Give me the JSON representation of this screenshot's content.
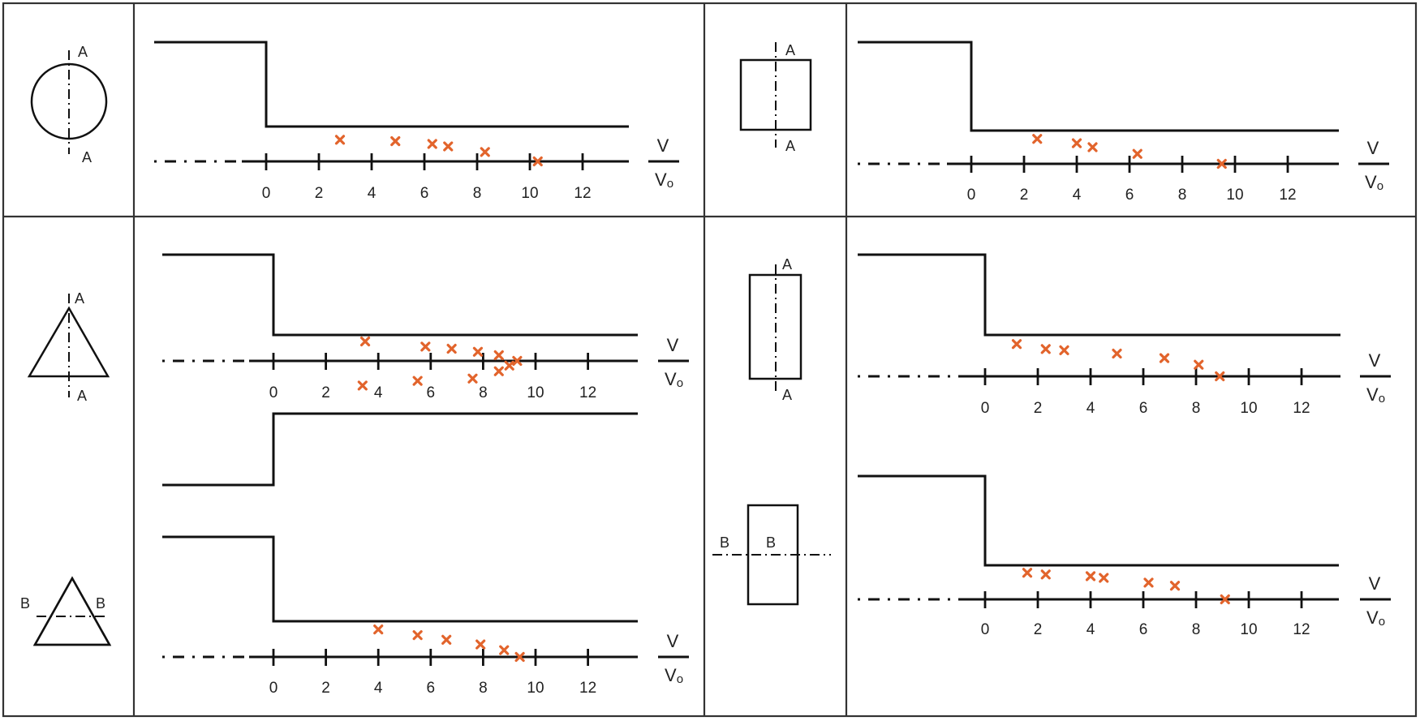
{
  "colors": {
    "line": "#111111",
    "frame": "#333333",
    "marker": "#e2642c",
    "background": "#ffffff"
  },
  "axis": {
    "ticks": [
      "0",
      "2",
      "4",
      "6",
      "8",
      "10",
      "12"
    ],
    "label_numerator": "V",
    "label_denominator": "Vo"
  },
  "shapes": [
    {
      "id": "circle-AA",
      "shape": "circle",
      "section_labels": [
        "A",
        "A"
      ],
      "axis": "vertical"
    },
    {
      "id": "square-AA",
      "shape": "square",
      "section_labels": [
        "A",
        "A"
      ],
      "axis": "vertical"
    },
    {
      "id": "triangle-AA",
      "shape": "triangle",
      "section_labels": [
        "A",
        "A"
      ],
      "axis": "vertical"
    },
    {
      "id": "rectangle-AA",
      "shape": "tall-rectangle",
      "section_labels": [
        "A",
        "A"
      ],
      "axis": "vertical"
    },
    {
      "id": "triangle-BB",
      "shape": "triangle",
      "section_labels": [
        "B",
        "B"
      ],
      "axis": "horizontal"
    },
    {
      "id": "rectangle-BB",
      "shape": "tall-rectangle",
      "section_labels": [
        "B",
        "B"
      ],
      "axis": "horizontal"
    }
  ],
  "chart_data": [
    {
      "type": "scatter",
      "title": "Circle, section A-A",
      "xlabel": "V/Vo",
      "xlim": [
        0,
        13.5
      ],
      "x_ticks": [
        0,
        2,
        4,
        6,
        8,
        10,
        12
      ],
      "grid": false,
      "series": [
        {
          "name": "upper",
          "x": [
            2.8,
            4.9,
            6.3,
            6.9,
            8.3,
            10.3
          ],
          "y_rel": [
            0.62,
            0.58,
            0.5,
            0.43,
            0.27,
            0.0
          ]
        }
      ]
    },
    {
      "type": "scatter",
      "title": "Square, section A-A",
      "xlabel": "V/Vo",
      "xlim": [
        0,
        13.5
      ],
      "x_ticks": [
        0,
        2,
        4,
        6,
        8,
        10,
        12
      ],
      "grid": false,
      "series": [
        {
          "name": "upper",
          "x": [
            2.5,
            4.0,
            4.6,
            6.3,
            9.5
          ],
          "y_rel": [
            0.75,
            0.62,
            0.5,
            0.3,
            0.0
          ]
        }
      ]
    },
    {
      "type": "scatter",
      "title": "Triangle, section A-A",
      "xlabel": "V/Vo",
      "xlim": [
        0,
        13.5
      ],
      "x_ticks": [
        0,
        2,
        4,
        6,
        8,
        10,
        12
      ],
      "grid": false,
      "series": [
        {
          "name": "upper",
          "x": [
            3.5,
            5.8,
            6.8,
            7.8,
            8.6,
            9.3
          ],
          "y_rel": [
            0.75,
            0.55,
            0.47,
            0.35,
            0.22,
            0.0
          ]
        },
        {
          "name": "lower",
          "x": [
            3.4,
            5.5,
            7.6,
            8.6,
            9.0
          ],
          "y_rel": [
            -0.95,
            -0.77,
            -0.68,
            -0.4,
            -0.18
          ]
        }
      ]
    },
    {
      "type": "scatter",
      "title": "Tall rectangle, section A-A",
      "xlabel": "V/Vo",
      "xlim": [
        0,
        13.5
      ],
      "x_ticks": [
        0,
        2,
        4,
        6,
        8,
        10,
        12
      ],
      "grid": false,
      "series": [
        {
          "name": "upper",
          "x": [
            1.2,
            2.3,
            3.0,
            5.0,
            6.8,
            8.1,
            8.9
          ],
          "y_rel": [
            0.78,
            0.66,
            0.63,
            0.55,
            0.44,
            0.28,
            0.0
          ]
        }
      ]
    },
    {
      "type": "scatter",
      "title": "Triangle, section B-B",
      "xlabel": "V/Vo",
      "xlim": [
        0,
        13.5
      ],
      "x_ticks": [
        0,
        2,
        4,
        6,
        8,
        10,
        12
      ],
      "grid": false,
      "series": [
        {
          "name": "upper",
          "x": [
            4.0,
            5.5,
            6.6,
            7.9,
            8.8,
            9.4
          ],
          "y_rel": [
            0.77,
            0.61,
            0.48,
            0.35,
            0.19,
            0.0
          ]
        }
      ]
    },
    {
      "type": "scatter",
      "title": "Tall rectangle, section B-B",
      "xlabel": "V/Vo",
      "xlim": [
        0,
        13.5
      ],
      "x_ticks": [
        0,
        2,
        4,
        6,
        8,
        10,
        12
      ],
      "grid": false,
      "series": [
        {
          "name": "upper",
          "x": [
            1.6,
            2.3,
            4.0,
            4.5,
            6.2,
            7.2,
            9.1
          ],
          "y_rel": [
            0.78,
            0.73,
            0.68,
            0.63,
            0.49,
            0.4,
            0.0
          ]
        }
      ]
    }
  ]
}
